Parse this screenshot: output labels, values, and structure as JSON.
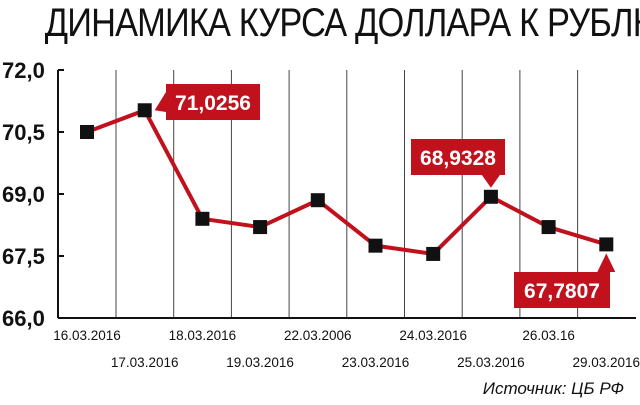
{
  "chart_data": {
    "type": "line",
    "title": "ДИНАМИКА КУРСА ДОЛЛАРА К РУБЛЮ",
    "x_labels": [
      "16.03.2016",
      "17.03.2016",
      "18.03.2016",
      "19.03.2016",
      "22.03.2006",
      "23.03.2016",
      "24.03.2016",
      "25.03.2016",
      "26.03.16",
      "29.03.2016"
    ],
    "values": [
      70.5,
      71.0256,
      68.4,
      68.2,
      68.85,
      67.75,
      67.55,
      68.9328,
      68.2,
      67.7807
    ],
    "y_ticks": [
      "72,0",
      "70,5",
      "69,0",
      "67,5",
      "66,0"
    ],
    "ylim": [
      66.0,
      72.0
    ],
    "grid": "vertical",
    "callouts": [
      {
        "index": 1,
        "label": "71,0256"
      },
      {
        "index": 7,
        "label": "68,9328"
      },
      {
        "index": 9,
        "label": "67,7807"
      }
    ],
    "source": "Источник: ЦБ РФ",
    "colors": {
      "line": "#c0111d",
      "marker": "#111111",
      "callout_bg": "#c0111d",
      "callout_text": "#ffffff",
      "grid": "#444444"
    }
  }
}
